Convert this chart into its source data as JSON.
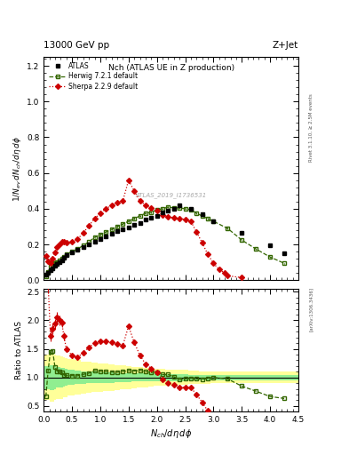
{
  "title_top_left": "13000 GeV pp",
  "title_top_right": "Z+Jet",
  "plot_title": "Nch (ATLAS UE in Z production)",
  "watermark": "ATLAS_2019_I1736531",
  "xlabel": "$N_{ch}/d\\eta\\,d\\phi$",
  "ylabel_main": "$1/N_{ev}\\,dN_{ch}/d\\eta\\,d\\phi$",
  "ylabel_ratio": "Ratio to ATLAS",
  "rivet_label": "Rivet 3.1.10, ≥ 2.5M events",
  "arxiv_label": "[arXiv:1306.3436]",
  "atlas_x": [
    0.04,
    0.08,
    0.12,
    0.16,
    0.2,
    0.24,
    0.28,
    0.32,
    0.36,
    0.4,
    0.5,
    0.6,
    0.7,
    0.8,
    0.9,
    1.0,
    1.1,
    1.2,
    1.3,
    1.4,
    1.5,
    1.6,
    1.7,
    1.8,
    1.9,
    2.0,
    2.1,
    2.2,
    2.3,
    2.4,
    2.6,
    2.8,
    3.0,
    3.5,
    4.0,
    4.25
  ],
  "atlas_y": [
    0.03,
    0.04,
    0.055,
    0.065,
    0.08,
    0.09,
    0.1,
    0.11,
    0.125,
    0.14,
    0.155,
    0.17,
    0.185,
    0.2,
    0.215,
    0.23,
    0.245,
    0.26,
    0.275,
    0.285,
    0.295,
    0.31,
    0.32,
    0.34,
    0.35,
    0.36,
    0.38,
    0.39,
    0.4,
    0.42,
    0.4,
    0.37,
    0.33,
    0.265,
    0.195,
    0.15
  ],
  "atlas_yerr": [
    0.005,
    0.005,
    0.005,
    0.005,
    0.005,
    0.005,
    0.005,
    0.005,
    0.005,
    0.005,
    0.005,
    0.005,
    0.005,
    0.005,
    0.005,
    0.005,
    0.005,
    0.005,
    0.005,
    0.005,
    0.005,
    0.005,
    0.005,
    0.005,
    0.005,
    0.005,
    0.005,
    0.005,
    0.005,
    0.005,
    0.005,
    0.005,
    0.005,
    0.005,
    0.005,
    0.005
  ],
  "herwig_x": [
    0.04,
    0.08,
    0.12,
    0.16,
    0.2,
    0.24,
    0.28,
    0.32,
    0.36,
    0.4,
    0.5,
    0.6,
    0.7,
    0.8,
    0.9,
    1.0,
    1.1,
    1.2,
    1.3,
    1.4,
    1.5,
    1.6,
    1.7,
    1.8,
    1.9,
    2.0,
    2.1,
    2.2,
    2.3,
    2.4,
    2.5,
    2.6,
    2.7,
    2.8,
    2.9,
    3.0,
    3.25,
    3.5,
    3.75,
    4.0,
    4.25
  ],
  "herwig_y": [
    0.02,
    0.045,
    0.08,
    0.095,
    0.095,
    0.1,
    0.11,
    0.12,
    0.13,
    0.145,
    0.16,
    0.175,
    0.195,
    0.215,
    0.24,
    0.255,
    0.27,
    0.285,
    0.3,
    0.315,
    0.33,
    0.345,
    0.36,
    0.375,
    0.38,
    0.395,
    0.4,
    0.41,
    0.405,
    0.405,
    0.4,
    0.395,
    0.375,
    0.36,
    0.345,
    0.33,
    0.29,
    0.225,
    0.175,
    0.13,
    0.095
  ],
  "herwig_yerr": [
    0.003,
    0.003,
    0.003,
    0.003,
    0.003,
    0.003,
    0.003,
    0.003,
    0.003,
    0.003,
    0.003,
    0.003,
    0.003,
    0.003,
    0.003,
    0.003,
    0.003,
    0.003,
    0.003,
    0.003,
    0.003,
    0.003,
    0.003,
    0.003,
    0.003,
    0.003,
    0.003,
    0.003,
    0.003,
    0.003,
    0.003,
    0.003,
    0.003,
    0.003,
    0.003,
    0.003,
    0.003,
    0.003,
    0.003,
    0.003,
    0.003
  ],
  "sherpa_x": [
    0.04,
    0.08,
    0.12,
    0.16,
    0.2,
    0.24,
    0.28,
    0.32,
    0.36,
    0.4,
    0.5,
    0.6,
    0.7,
    0.8,
    0.9,
    1.0,
    1.1,
    1.2,
    1.3,
    1.4,
    1.5,
    1.6,
    1.7,
    1.8,
    1.9,
    2.0,
    2.1,
    2.2,
    2.3,
    2.4,
    2.5,
    2.6,
    2.7,
    2.8,
    2.9,
    3.0,
    3.1,
    3.2,
    3.25,
    3.5
  ],
  "sherpa_y": [
    0.135,
    0.105,
    0.095,
    0.12,
    0.155,
    0.185,
    0.2,
    0.215,
    0.215,
    0.21,
    0.215,
    0.23,
    0.265,
    0.305,
    0.345,
    0.375,
    0.4,
    0.42,
    0.435,
    0.445,
    0.56,
    0.5,
    0.445,
    0.42,
    0.405,
    0.39,
    0.365,
    0.355,
    0.35,
    0.345,
    0.34,
    0.33,
    0.27,
    0.21,
    0.145,
    0.095,
    0.06,
    0.04,
    0.025,
    0.015
  ],
  "sherpa_yerr": [
    0.008,
    0.006,
    0.005,
    0.006,
    0.007,
    0.008,
    0.008,
    0.008,
    0.008,
    0.007,
    0.007,
    0.007,
    0.007,
    0.008,
    0.009,
    0.01,
    0.01,
    0.01,
    0.01,
    0.01,
    0.012,
    0.011,
    0.01,
    0.01,
    0.009,
    0.009,
    0.008,
    0.008,
    0.008,
    0.008,
    0.008,
    0.007,
    0.007,
    0.007,
    0.006,
    0.005,
    0.005,
    0.005,
    0.004,
    0.003
  ],
  "band_x_edges": [
    0.0,
    0.06,
    0.1,
    0.14,
    0.18,
    0.22,
    0.26,
    0.3,
    0.34,
    0.38,
    0.42,
    0.55,
    0.65,
    0.75,
    0.85,
    0.95,
    1.05,
    1.15,
    1.25,
    1.35,
    1.45,
    1.55,
    1.65,
    1.75,
    1.85,
    1.95,
    2.05,
    2.15,
    2.25,
    2.35,
    2.45,
    2.55,
    2.65,
    2.75,
    2.85,
    2.95,
    3.1,
    3.375,
    3.625,
    3.875,
    4.125,
    4.5
  ],
  "band_green_lo": [
    0.8,
    0.8,
    0.78,
    0.78,
    0.8,
    0.82,
    0.82,
    0.83,
    0.84,
    0.85,
    0.87,
    0.88,
    0.89,
    0.9,
    0.9,
    0.91,
    0.91,
    0.91,
    0.92,
    0.92,
    0.92,
    0.93,
    0.93,
    0.93,
    0.93,
    0.93,
    0.94,
    0.94,
    0.94,
    0.94,
    0.94,
    0.95,
    0.95,
    0.95,
    0.95,
    0.95,
    0.95,
    0.95,
    0.95,
    0.95,
    0.95,
    0.95
  ],
  "band_green_hi": [
    1.2,
    1.2,
    1.22,
    1.22,
    1.2,
    1.18,
    1.18,
    1.17,
    1.16,
    1.15,
    1.13,
    1.12,
    1.11,
    1.1,
    1.1,
    1.09,
    1.09,
    1.09,
    1.08,
    1.08,
    1.08,
    1.07,
    1.07,
    1.07,
    1.07,
    1.07,
    1.06,
    1.06,
    1.06,
    1.06,
    1.06,
    1.05,
    1.05,
    1.05,
    1.05,
    1.05,
    1.05,
    1.05,
    1.05,
    1.05,
    1.05,
    1.05
  ],
  "band_yellow_lo": [
    0.6,
    0.6,
    0.58,
    0.58,
    0.6,
    0.62,
    0.62,
    0.63,
    0.65,
    0.66,
    0.68,
    0.7,
    0.72,
    0.73,
    0.74,
    0.75,
    0.76,
    0.77,
    0.78,
    0.79,
    0.8,
    0.81,
    0.82,
    0.83,
    0.84,
    0.85,
    0.85,
    0.86,
    0.86,
    0.87,
    0.87,
    0.88,
    0.88,
    0.89,
    0.89,
    0.9,
    0.9,
    0.9,
    0.9,
    0.9,
    0.9,
    0.9
  ],
  "band_yellow_hi": [
    1.4,
    1.4,
    1.42,
    1.42,
    1.4,
    1.38,
    1.38,
    1.37,
    1.35,
    1.34,
    1.32,
    1.3,
    1.28,
    1.27,
    1.26,
    1.25,
    1.24,
    1.23,
    1.22,
    1.21,
    1.2,
    1.19,
    1.18,
    1.17,
    1.16,
    1.15,
    1.15,
    1.14,
    1.14,
    1.13,
    1.13,
    1.12,
    1.12,
    1.11,
    1.11,
    1.1,
    1.1,
    1.1,
    1.1,
    1.1,
    1.1,
    1.1
  ],
  "ylim_main": [
    0.0,
    1.25
  ],
  "ylim_ratio": [
    0.4,
    2.55
  ],
  "xlim": [
    0.0,
    4.5
  ],
  "yticks_main": [
    0.0,
    0.2,
    0.4,
    0.6,
    0.8,
    1.0,
    1.2
  ],
  "yticks_ratio": [
    0.5,
    1.0,
    1.5,
    2.0,
    2.5
  ],
  "color_atlas": "#000000",
  "color_herwig": "#336600",
  "color_sherpa": "#cc0000",
  "color_band_green": "#90ee90",
  "color_band_yellow": "#ffff99"
}
